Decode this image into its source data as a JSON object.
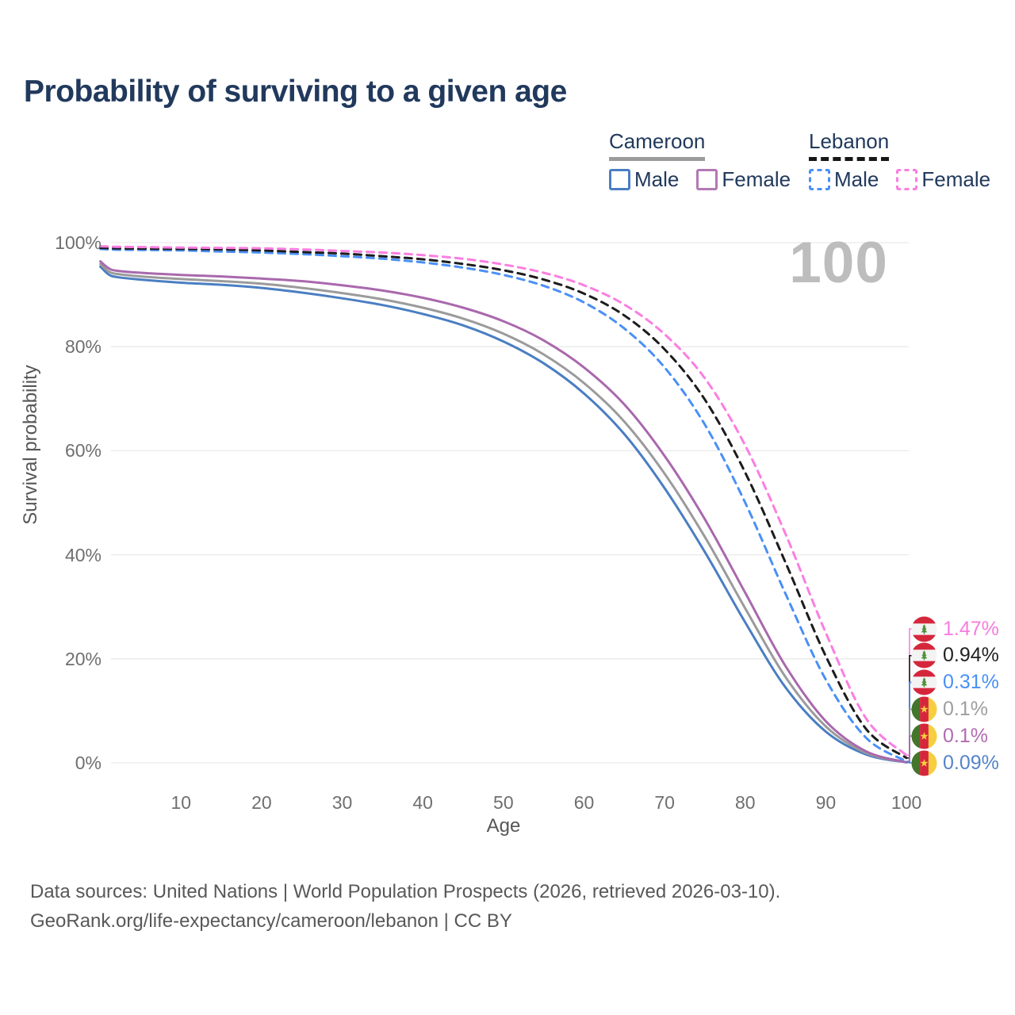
{
  "title": "Probability of surviving to a given age",
  "watermark": "100",
  "legend": {
    "groups": [
      {
        "label": "Cameroon",
        "line_style": "solid",
        "underline_color": "#9b9b9b",
        "items": [
          {
            "label": "Male",
            "color": "#4a7ec2"
          },
          {
            "label": "Female",
            "color": "#b279b2"
          }
        ]
      },
      {
        "label": "Lebanon",
        "line_style": "dashed",
        "underline_color": "#161616",
        "items": [
          {
            "label": "Male",
            "color": "#4a90f5"
          },
          {
            "label": "Female",
            "color": "#fb7ee1"
          }
        ]
      }
    ]
  },
  "chart_data": {
    "type": "line",
    "title": "Probability of surviving to a given age",
    "xlabel": "Age",
    "ylabel": "Survival probability",
    "xlim": [
      0,
      100
    ],
    "ylim": [
      0,
      100
    ],
    "grid": "horizontal",
    "x_ticks": [
      10,
      20,
      30,
      40,
      50,
      60,
      70,
      80,
      90,
      100
    ],
    "y_tick_values": [
      0,
      20,
      40,
      60,
      80,
      100
    ],
    "y_tick_labels": [
      "0%",
      "20%",
      "40%",
      "60%",
      "80%",
      "100%"
    ],
    "x": [
      0,
      1,
      2,
      5,
      10,
      15,
      20,
      25,
      30,
      35,
      40,
      45,
      50,
      55,
      60,
      65,
      70,
      75,
      80,
      85,
      90,
      95,
      100
    ],
    "series": [
      {
        "name": "Cameroon Male",
        "country": "Cameroon",
        "sex": "Male",
        "color": "#4a7ec2",
        "dash": "solid",
        "values": [
          95.4,
          93.9,
          93.4,
          92.9,
          92.3,
          91.9,
          91.3,
          90.4,
          89.3,
          88.0,
          86.3,
          84.1,
          81.0,
          76.8,
          71.0,
          63.2,
          52.8,
          40.5,
          27.0,
          14.5,
          6.0,
          1.6,
          0.09
        ]
      },
      {
        "name": "Cameroon Both sexes",
        "country": "Cameroon",
        "sex": "Both sexes",
        "color": "#9b9b9b",
        "dash": "solid",
        "values": [
          95.9,
          94.5,
          94.0,
          93.5,
          93.0,
          92.6,
          92.1,
          91.3,
          90.3,
          89.1,
          87.5,
          85.4,
          82.5,
          78.5,
          73.0,
          65.6,
          55.6,
          43.4,
          29.7,
          16.5,
          7.0,
          1.9,
          0.1
        ]
      },
      {
        "name": "Cameroon Female",
        "country": "Cameroon",
        "sex": "Female",
        "color": "#a968ad",
        "dash": "solid",
        "values": [
          96.4,
          95.1,
          94.6,
          94.2,
          93.8,
          93.5,
          93.1,
          92.6,
          91.8,
          90.8,
          89.4,
          87.5,
          84.9,
          81.2,
          76.0,
          68.9,
          59.0,
          46.8,
          32.7,
          18.6,
          8.0,
          2.2,
          0.1
        ]
      },
      {
        "name": "Lebanon Male",
        "country": "Lebanon",
        "sex": "Male",
        "color": "#4a90f5",
        "dash": "dashed",
        "values": [
          98.8,
          98.7,
          98.65,
          98.6,
          98.5,
          98.3,
          98.1,
          97.8,
          97.4,
          96.9,
          96.2,
          95.2,
          93.8,
          91.7,
          88.5,
          83.5,
          76.0,
          65.0,
          50.0,
          32.5,
          16.0,
          4.8,
          0.31
        ]
      },
      {
        "name": "Lebanon Both sexes",
        "country": "Lebanon",
        "sex": "Both sexes",
        "color": "#1c1c1c",
        "dash": "dashed",
        "values": [
          99.0,
          98.95,
          98.9,
          98.85,
          98.8,
          98.7,
          98.5,
          98.2,
          97.9,
          97.4,
          96.8,
          95.9,
          94.7,
          92.9,
          90.2,
          86.0,
          79.5,
          69.8,
          55.8,
          38.5,
          20.5,
          6.5,
          0.94
        ]
      },
      {
        "name": "Lebanon Female",
        "country": "Lebanon",
        "sex": "Female",
        "color": "#fb7ee1",
        "dash": "dashed",
        "values": [
          99.3,
          99.25,
          99.2,
          99.15,
          99.05,
          99.0,
          98.9,
          98.7,
          98.4,
          98.1,
          97.6,
          96.9,
          95.8,
          94.2,
          91.8,
          88.1,
          82.4,
          73.9,
          61.0,
          44.0,
          25.0,
          8.5,
          1.47
        ]
      }
    ]
  },
  "end_labels": [
    {
      "series": "Lebanon Female",
      "value": "1.47%",
      "color": "#f87be0",
      "flag": "lebanon"
    },
    {
      "series": "Lebanon Both sexes",
      "value": "0.94%",
      "color": "#222222",
      "flag": "lebanon"
    },
    {
      "series": "Lebanon Male",
      "value": "0.31%",
      "color": "#4a90f5",
      "flag": "lebanon"
    },
    {
      "series": "Cameroon Both sexes",
      "value": "0.1%",
      "color": "#9e9e9e",
      "flag": "cameroon"
    },
    {
      "series": "Cameroon Female",
      "value": "0.1%",
      "color": "#b06cb0",
      "flag": "cameroon"
    },
    {
      "series": "Cameroon Male",
      "value": "0.09%",
      "color": "#5584c8",
      "flag": "cameroon"
    }
  ],
  "flags": {
    "lebanon": {
      "red": "#d5273b",
      "white": "#f3f3f3",
      "green": "#4f8f3a"
    },
    "cameroon": {
      "green": "#43752b",
      "red": "#d5273b",
      "yellow": "#f5cf3f"
    }
  },
  "colors": {
    "grid": "#e9e9e9",
    "watermark": "#bdbdbd",
    "title": "#21395c"
  },
  "footer": {
    "line1": "Data sources: United Nations | World Population Prospects (2026, retrieved 2026-03-10).",
    "line2": "GeoRank.org/life-expectancy/cameroon/lebanon | CC BY"
  }
}
